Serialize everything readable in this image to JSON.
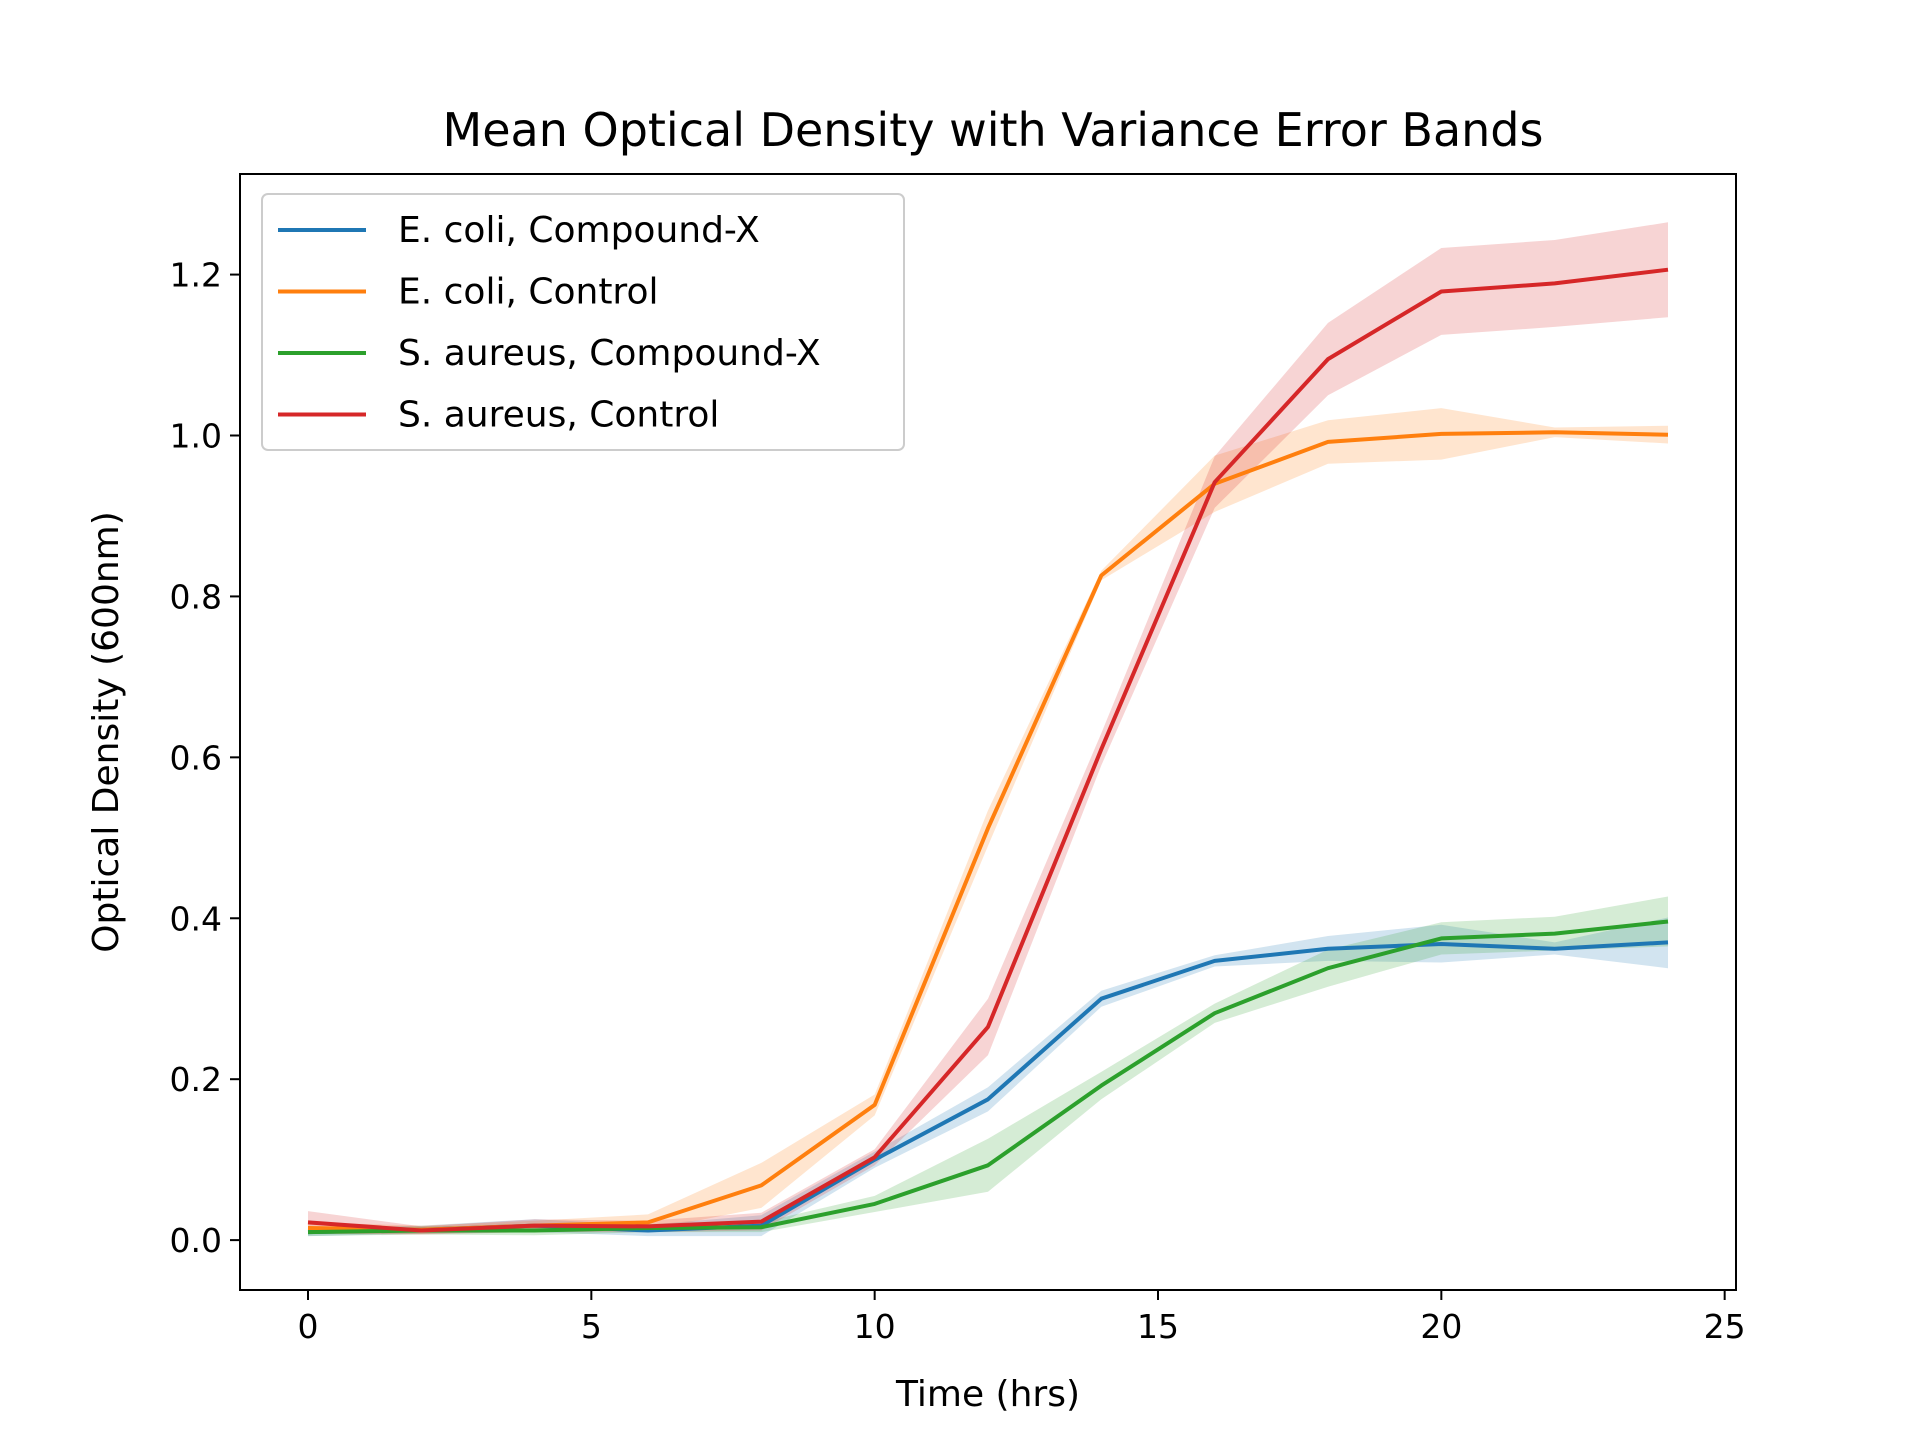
{
  "chart_data": {
    "type": "line",
    "title": "Mean Optical Density with Variance Error Bands",
    "xlabel": "Time (hrs)",
    "ylabel": "Optical Density (600nm)",
    "xlim": [
      -1.2,
      25.2
    ],
    "ylim": [
      -0.062,
      1.325
    ],
    "x_ticks": [
      0,
      5,
      10,
      15,
      20,
      25
    ],
    "y_ticks": [
      0.0,
      0.2,
      0.4,
      0.6,
      0.8,
      1.0,
      1.2
    ],
    "y_tick_labels": [
      "0.0",
      "0.2",
      "0.4",
      "0.6",
      "0.8",
      "1.0",
      "1.2"
    ],
    "legend_position": "upper-left",
    "grid": false,
    "x": [
      0,
      2,
      4,
      6,
      8,
      10,
      12,
      14,
      16,
      18,
      20,
      22,
      24
    ],
    "series": [
      {
        "name": "E. coli, Compound-X",
        "color": "#1f77b4",
        "values": [
          0.01,
          0.013,
          0.018,
          0.012,
          0.018,
          0.1,
          0.175,
          0.3,
          0.347,
          0.362,
          0.368,
          0.362,
          0.37
        ],
        "lower": [
          0.005,
          0.008,
          0.01,
          0.005,
          0.005,
          0.09,
          0.16,
          0.29,
          0.34,
          0.347,
          0.345,
          0.355,
          0.338
        ],
        "upper": [
          0.015,
          0.018,
          0.026,
          0.019,
          0.031,
          0.11,
          0.19,
          0.31,
          0.354,
          0.378,
          0.392,
          0.37,
          0.401
        ]
      },
      {
        "name": "E. coli, Control",
        "color": "#ff7f0e",
        "values": [
          0.015,
          0.013,
          0.018,
          0.022,
          0.068,
          0.168,
          0.512,
          0.826,
          0.94,
          0.992,
          1.002,
          1.004,
          1.001
        ],
        "lower": [
          0.008,
          0.008,
          0.012,
          0.012,
          0.04,
          0.155,
          0.49,
          0.82,
          0.905,
          0.965,
          0.97,
          0.998,
          0.99
        ],
        "upper": [
          0.022,
          0.018,
          0.024,
          0.032,
          0.096,
          0.181,
          0.534,
          0.832,
          0.975,
          1.019,
          1.034,
          1.01,
          1.012
        ]
      },
      {
        "name": "S. aureus, Compound-X",
        "color": "#2ca02c",
        "values": [
          0.01,
          0.012,
          0.012,
          0.015,
          0.016,
          0.045,
          0.093,
          0.192,
          0.282,
          0.338,
          0.375,
          0.381,
          0.396
        ],
        "lower": [
          0.005,
          0.007,
          0.006,
          0.01,
          0.01,
          0.035,
          0.06,
          0.175,
          0.27,
          0.315,
          0.355,
          0.36,
          0.365
        ],
        "upper": [
          0.015,
          0.017,
          0.018,
          0.02,
          0.022,
          0.055,
          0.126,
          0.209,
          0.294,
          0.361,
          0.395,
          0.402,
          0.427
        ]
      },
      {
        "name": "S. aureus, Control",
        "color": "#d62728",
        "values": [
          0.022,
          0.012,
          0.018,
          0.017,
          0.023,
          0.103,
          0.265,
          0.61,
          0.942,
          1.095,
          1.179,
          1.189,
          1.206
        ],
        "lower": [
          0.008,
          0.007,
          0.01,
          0.01,
          0.012,
          0.093,
          0.23,
          0.59,
          0.91,
          1.05,
          1.125,
          1.135,
          1.147
        ],
        "upper": [
          0.036,
          0.017,
          0.026,
          0.024,
          0.034,
          0.113,
          0.3,
          0.63,
          0.974,
          1.14,
          1.233,
          1.243,
          1.265
        ]
      }
    ]
  }
}
